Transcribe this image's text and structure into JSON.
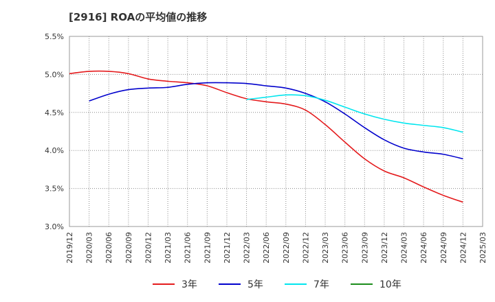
{
  "chart_data": {
    "type": "line",
    "title": "[2916]  ROAの平均値の推移",
    "xlabel": "",
    "ylabel": "",
    "y_tick_labels": [
      "3.0%",
      "3.5%",
      "4.0%",
      "4.5%",
      "5.0%",
      "5.5%"
    ],
    "ylim": [
      3.0,
      5.5
    ],
    "x_tick_labels": [
      "2019/12",
      "2020/03",
      "2020/06",
      "2020/09",
      "2020/12",
      "2021/03",
      "2021/06",
      "2021/09",
      "2021/12",
      "2022/03",
      "2022/06",
      "2022/09",
      "2022/12",
      "2023/03",
      "2023/06",
      "2023/09",
      "2023/12",
      "2024/03",
      "2024/06",
      "2024/09",
      "2024/12",
      "2025/03"
    ],
    "grid": true,
    "legend_position": "bottom",
    "series": [
      {
        "name": "3年",
        "color": "#e41a1c",
        "values": [
          5.01,
          5.04,
          5.04,
          5.01,
          4.94,
          4.91,
          4.89,
          4.85,
          4.76,
          4.68,
          4.64,
          4.61,
          4.53,
          4.34,
          4.11,
          3.89,
          3.73,
          3.64,
          3.52,
          3.41,
          3.32,
          null
        ]
      },
      {
        "name": "5年",
        "color": "#0000cc",
        "values": [
          null,
          4.65,
          4.74,
          4.8,
          4.82,
          4.83,
          4.87,
          4.89,
          4.89,
          4.88,
          4.85,
          4.82,
          4.75,
          4.64,
          4.48,
          4.3,
          4.14,
          4.03,
          3.98,
          3.95,
          3.89,
          null
        ]
      },
      {
        "name": "7年",
        "color": "#00e5ee",
        "values": [
          null,
          null,
          null,
          null,
          null,
          null,
          null,
          null,
          null,
          4.67,
          4.7,
          4.73,
          4.72,
          4.66,
          4.57,
          4.48,
          4.41,
          4.36,
          4.33,
          4.3,
          4.24,
          null
        ]
      },
      {
        "name": "10年",
        "color": "#1a8c1a",
        "values": []
      }
    ]
  }
}
